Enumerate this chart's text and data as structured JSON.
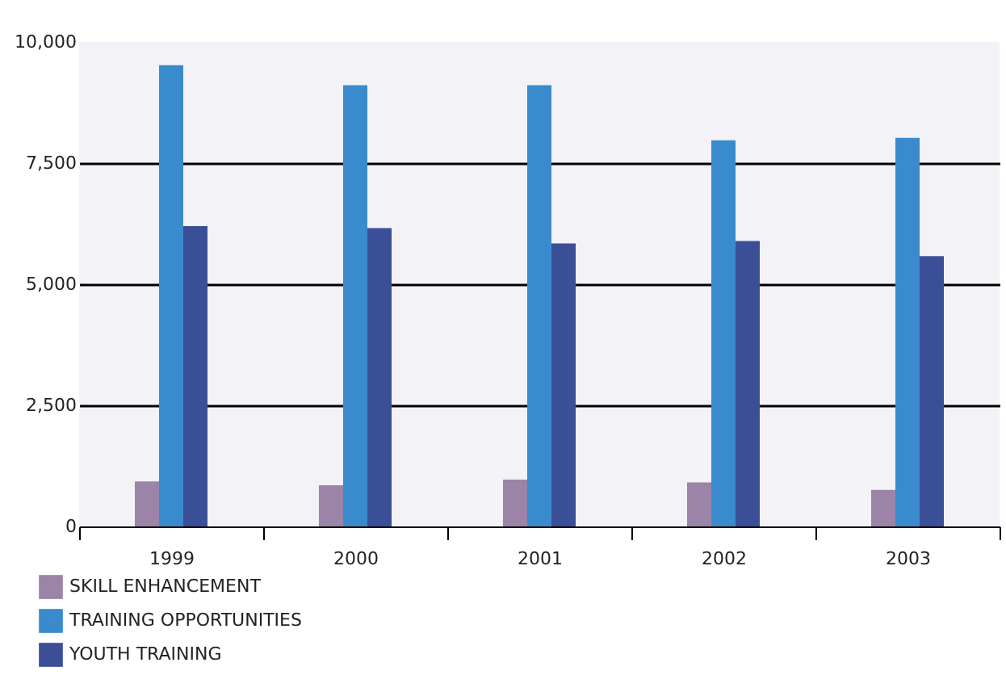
{
  "chart_data": {
    "type": "bar",
    "categories": [
      "1999",
      "2000",
      "2001",
      "2002",
      "2003"
    ],
    "series": [
      {
        "name": "SKILL ENHANCEMENT",
        "color": "#9b84a8",
        "values": [
          930,
          850,
          965,
          910,
          755
        ]
      },
      {
        "name": "TRAINING OPPORTUNITIES",
        "color": "#3a8bcd",
        "values": [
          9520,
          9110,
          9110,
          7970,
          8020
        ]
      },
      {
        "name": "YOUTH TRAINING",
        "color": "#3a4f98",
        "values": [
          6200,
          6160,
          5840,
          5890,
          5580
        ]
      }
    ],
    "ylim": [
      0,
      10000
    ],
    "yticks": [
      {
        "value": 0,
        "label": "0"
      },
      {
        "value": 2500,
        "label": "2,500"
      },
      {
        "value": 5000,
        "label": "5,000"
      },
      {
        "value": 7500,
        "label": "7,500"
      },
      {
        "value": 10000,
        "label": "10,000"
      }
    ],
    "grid": "y",
    "legend": "bottom"
  }
}
